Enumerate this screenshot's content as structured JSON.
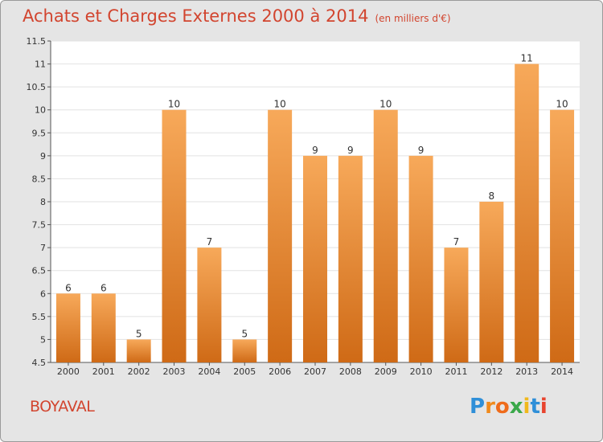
{
  "header": {
    "title": "Achats et Charges Externes 2000 à 2014",
    "unit": "(en milliers d'€)"
  },
  "footer": {
    "city": "BOYAVAL",
    "brand_letters": [
      "P",
      "r",
      "o",
      "x",
      "i",
      "t",
      "i"
    ],
    "brand_colors": [
      "#2f8fd8",
      "#f08a1c",
      "#ef6b1b",
      "#3aa84a",
      "#f0b81c",
      "#2f8fd8",
      "#e8442e"
    ]
  },
  "chart_data": {
    "type": "bar",
    "categories": [
      "2000",
      "2001",
      "2002",
      "2003",
      "2004",
      "2005",
      "2006",
      "2007",
      "2008",
      "2009",
      "2010",
      "2011",
      "2012",
      "2013",
      "2014"
    ],
    "values": [
      6,
      6,
      5,
      10,
      7,
      5,
      10,
      9,
      9,
      10,
      9,
      7,
      8,
      11,
      10
    ],
    "ylim": [
      4.5,
      11.5
    ],
    "yticks": [
      "4.5",
      "5",
      "5.5",
      "6",
      "6.5",
      "7",
      "7.5",
      "8",
      "8.5",
      "9",
      "9.5",
      "10",
      "10.5",
      "11",
      "11.5"
    ],
    "grid": true,
    "bar_color_top": "#f7a95a",
    "bar_color_bottom": "#cf6a16"
  }
}
